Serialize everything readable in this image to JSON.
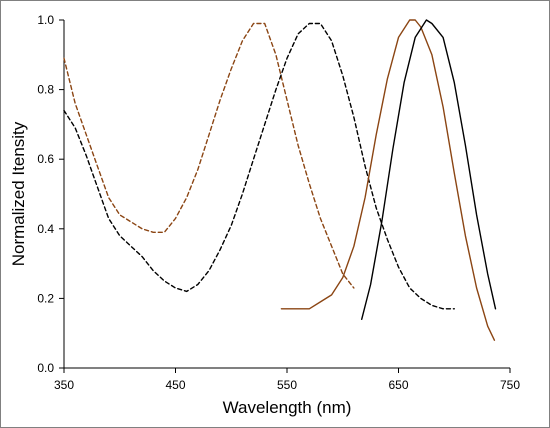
{
  "chart_data": {
    "type": "line",
    "xlabel": "Wavelength (nm)",
    "ylabel": "Normalized Itensity",
    "xlim": [
      350,
      750
    ],
    "ylim": [
      0.0,
      1.0
    ],
    "x_ticks": [
      350,
      450,
      550,
      650,
      750
    ],
    "x_tick_labels": [
      "350",
      "450",
      "550",
      "650",
      "750"
    ],
    "y_ticks": [
      0.0,
      0.2,
      0.4,
      0.6,
      0.8,
      1.0
    ],
    "y_tick_labels": [
      "0.0",
      "0.2",
      "0.4",
      "0.6",
      "0.8",
      "1.0"
    ],
    "grid": false,
    "legend": "none",
    "series": [
      {
        "style": "dashed",
        "color": "#8B4513",
        "x": [
          350,
          360,
          370,
          380,
          390,
          400,
          410,
          420,
          430,
          440,
          450,
          460,
          470,
          480,
          490,
          500,
          510,
          520,
          530,
          540,
          550,
          560,
          570,
          580,
          590,
          600,
          610
        ],
        "y": [
          0.89,
          0.76,
          0.67,
          0.58,
          0.49,
          0.44,
          0.42,
          0.4,
          0.39,
          0.39,
          0.43,
          0.49,
          0.57,
          0.67,
          0.77,
          0.86,
          0.94,
          0.99,
          0.99,
          0.9,
          0.77,
          0.64,
          0.53,
          0.43,
          0.35,
          0.27,
          0.23
        ]
      },
      {
        "style": "dashed",
        "color": "#000000",
        "x": [
          350,
          360,
          370,
          380,
          390,
          400,
          410,
          420,
          430,
          440,
          450,
          460,
          470,
          480,
          490,
          500,
          510,
          520,
          530,
          540,
          550,
          560,
          570,
          580,
          590,
          600,
          610,
          620,
          630,
          640,
          650,
          660,
          670,
          680,
          690,
          700
        ],
        "y": [
          0.74,
          0.69,
          0.61,
          0.52,
          0.43,
          0.38,
          0.35,
          0.32,
          0.28,
          0.25,
          0.23,
          0.22,
          0.24,
          0.28,
          0.34,
          0.41,
          0.5,
          0.6,
          0.7,
          0.8,
          0.89,
          0.96,
          0.99,
          0.99,
          0.94,
          0.84,
          0.72,
          0.58,
          0.46,
          0.37,
          0.29,
          0.23,
          0.2,
          0.18,
          0.17,
          0.17
        ]
      },
      {
        "style": "solid",
        "color": "#8B4513",
        "x": [
          545,
          560,
          570,
          580,
          590,
          600,
          610,
          620,
          630,
          640,
          650,
          660,
          665,
          670,
          680,
          690,
          700,
          710,
          720,
          730,
          736
        ],
        "y": [
          0.17,
          0.17,
          0.17,
          0.19,
          0.21,
          0.26,
          0.35,
          0.49,
          0.67,
          0.83,
          0.95,
          1.0,
          1.0,
          0.98,
          0.9,
          0.75,
          0.56,
          0.38,
          0.23,
          0.12,
          0.08
        ]
      },
      {
        "style": "solid",
        "color": "#000000",
        "x": [
          617,
          625,
          635,
          645,
          655,
          665,
          675,
          680,
          690,
          700,
          710,
          720,
          730,
          737
        ],
        "y": [
          0.14,
          0.24,
          0.42,
          0.63,
          0.82,
          0.95,
          1.0,
          0.99,
          0.95,
          0.82,
          0.64,
          0.44,
          0.27,
          0.17
        ]
      }
    ]
  }
}
